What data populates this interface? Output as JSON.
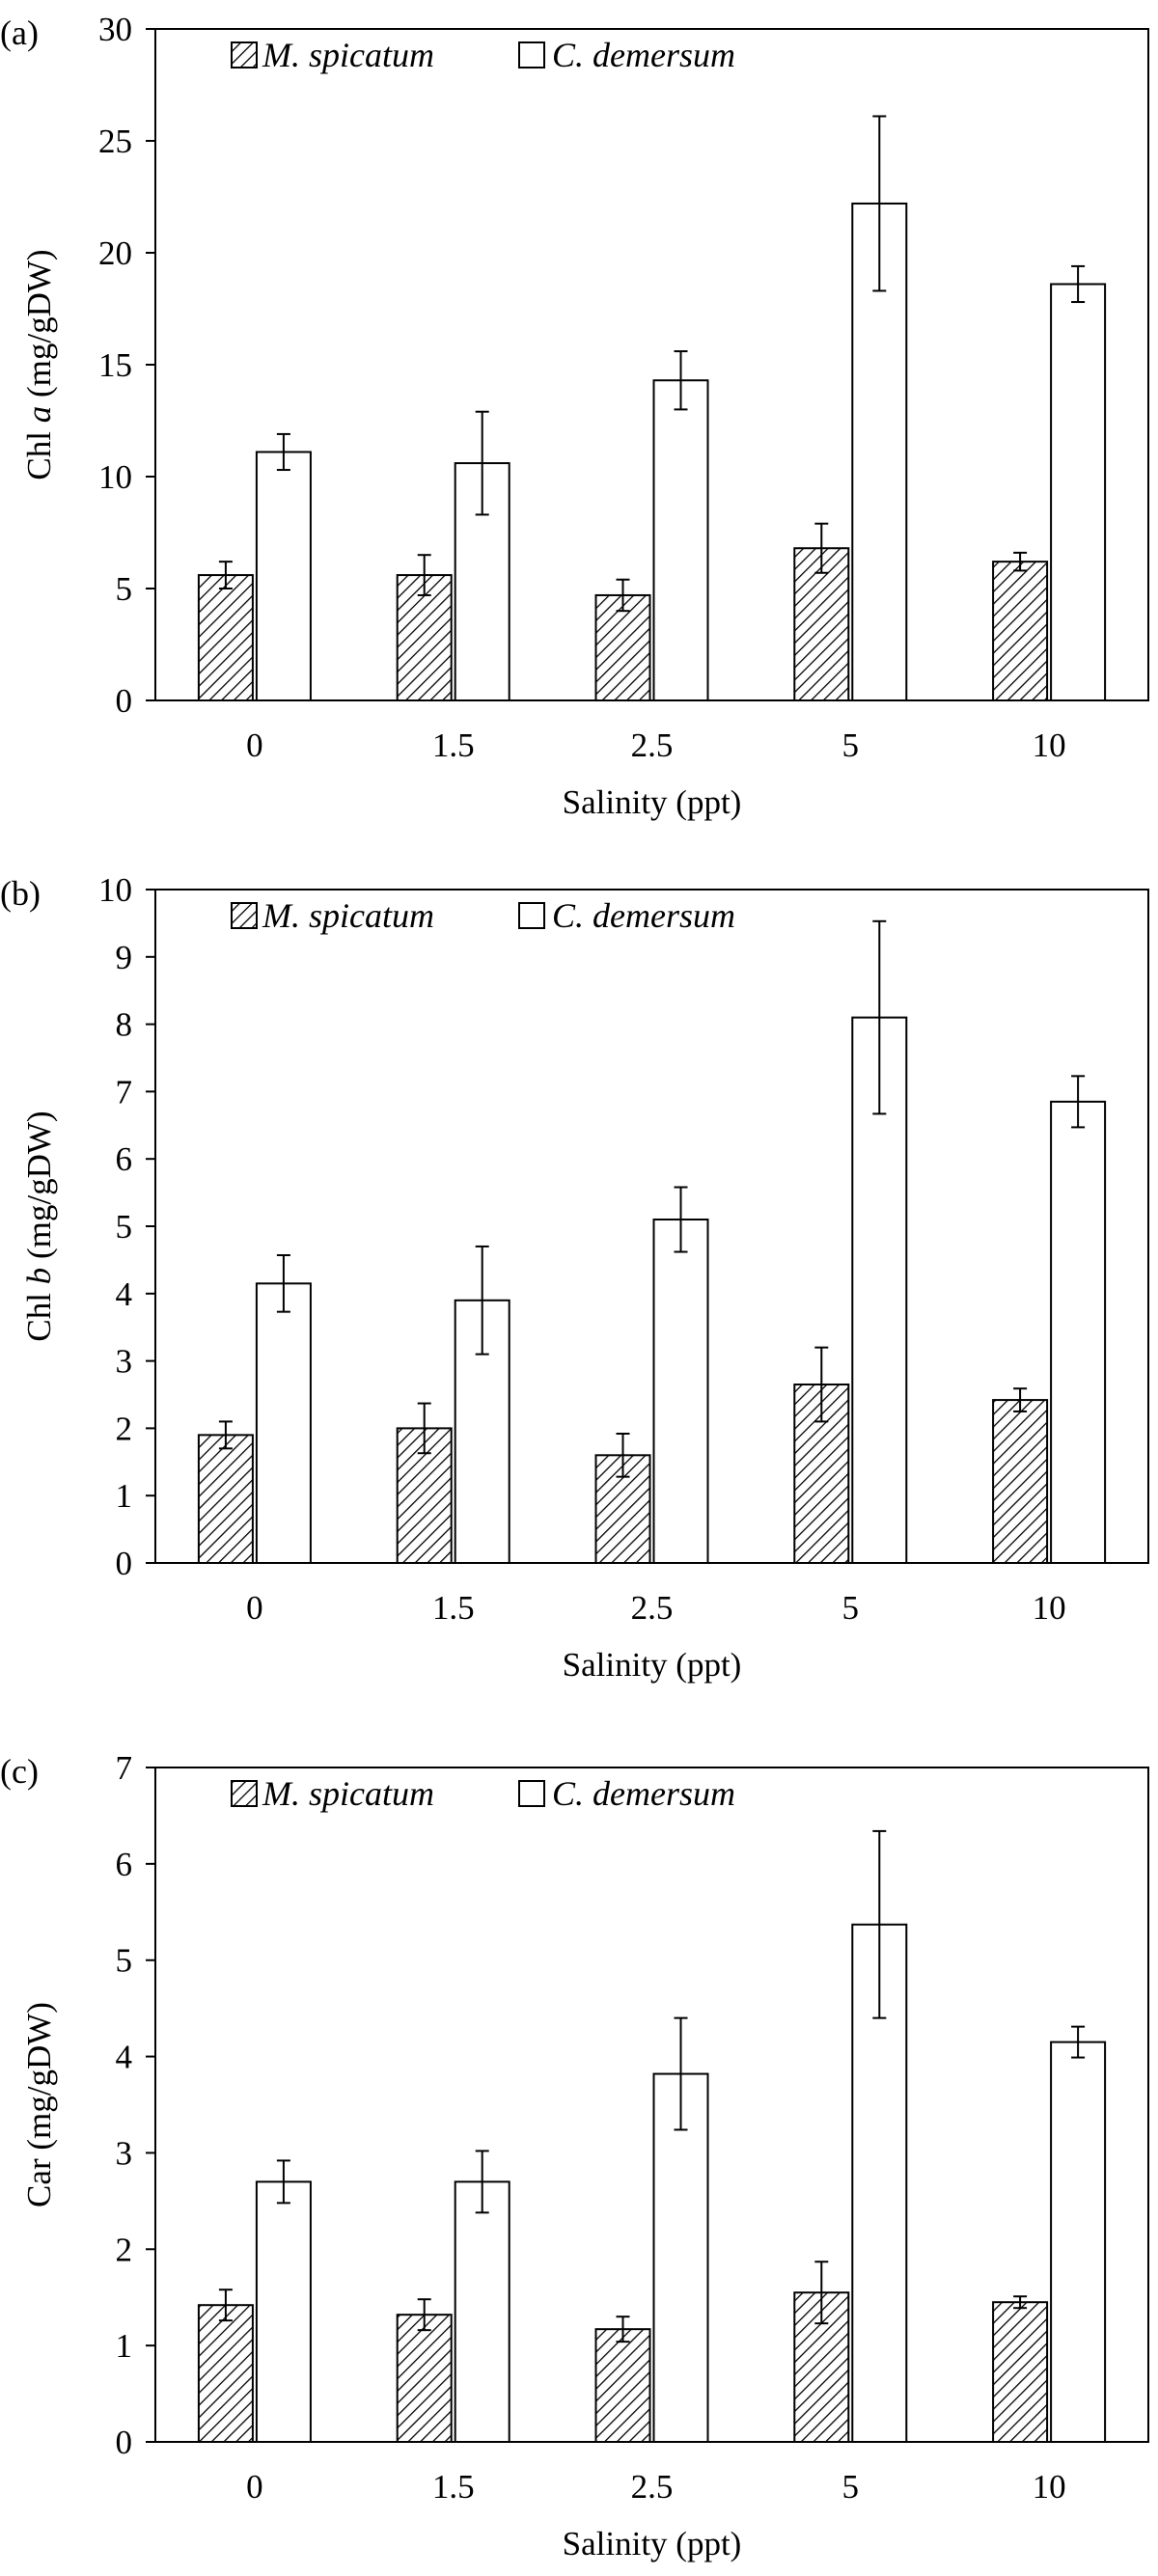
{
  "colors": {
    "axis": "#000000",
    "bar_fill_white": "#ffffff",
    "hatch": "#000000"
  },
  "chart_data": [
    {
      "type": "bar",
      "panel_label": "(a)",
      "xlabel": "Salinity (ppt)",
      "ylabel_prefix": "Chl ",
      "ylabel_italic": "a",
      "ylabel_suffix": " (mg/gDW)",
      "ylim": [
        0,
        30
      ],
      "yticks": [
        0,
        5,
        10,
        15,
        20,
        25,
        30
      ],
      "grid": false,
      "legend_position": "top-left",
      "categories": [
        "0",
        "1.5",
        "2.5",
        "5",
        "10"
      ],
      "series": [
        {
          "name": "M. spicatum",
          "style": "hatched",
          "values": [
            5.6,
            5.6,
            4.7,
            6.8,
            6.2
          ],
          "errors": [
            0.6,
            0.9,
            0.7,
            1.1,
            0.4
          ]
        },
        {
          "name": "C. demersum",
          "style": "white",
          "values": [
            11.1,
            10.6,
            14.3,
            22.2,
            18.6
          ],
          "errors": [
            0.8,
            2.3,
            1.3,
            3.9,
            0.8
          ]
        }
      ]
    },
    {
      "type": "bar",
      "panel_label": "(b)",
      "xlabel": "Salinity (ppt)",
      "ylabel_prefix": "Chl ",
      "ylabel_italic": "b",
      "ylabel_suffix": " (mg/gDW)",
      "ylim": [
        0,
        10
      ],
      "yticks": [
        0,
        1,
        2,
        3,
        4,
        5,
        6,
        7,
        8,
        9,
        10
      ],
      "grid": false,
      "legend_position": "top-left",
      "categories": [
        "0",
        "1.5",
        "2.5",
        "5",
        "10"
      ],
      "series": [
        {
          "name": "M. spicatum",
          "style": "hatched",
          "values": [
            1.9,
            2.0,
            1.6,
            2.65,
            2.42
          ],
          "errors": [
            0.2,
            0.37,
            0.32,
            0.55,
            0.17
          ]
        },
        {
          "name": "C. demersum",
          "style": "white",
          "values": [
            4.15,
            3.9,
            5.1,
            8.1,
            6.85
          ],
          "errors": [
            0.42,
            0.8,
            0.48,
            1.43,
            0.38
          ]
        }
      ]
    },
    {
      "type": "bar",
      "panel_label": "(c)",
      "xlabel": "Salinity (ppt)",
      "ylabel_prefix": "Car",
      "ylabel_italic": "",
      "ylabel_suffix": " (mg/gDW)",
      "ylim": [
        0,
        7
      ],
      "yticks": [
        0,
        1,
        2,
        3,
        4,
        5,
        6,
        7
      ],
      "grid": false,
      "legend_position": "top-left",
      "categories": [
        "0",
        "1.5",
        "2.5",
        "5",
        "10"
      ],
      "series": [
        {
          "name": "M. spicatum",
          "style": "hatched",
          "values": [
            1.42,
            1.32,
            1.17,
            1.55,
            1.45
          ],
          "errors": [
            0.16,
            0.16,
            0.13,
            0.32,
            0.06
          ]
        },
        {
          "name": "C. demersum",
          "style": "white",
          "values": [
            2.7,
            2.7,
            3.82,
            5.37,
            4.15
          ],
          "errors": [
            0.22,
            0.32,
            0.58,
            0.97,
            0.16
          ]
        }
      ]
    }
  ]
}
